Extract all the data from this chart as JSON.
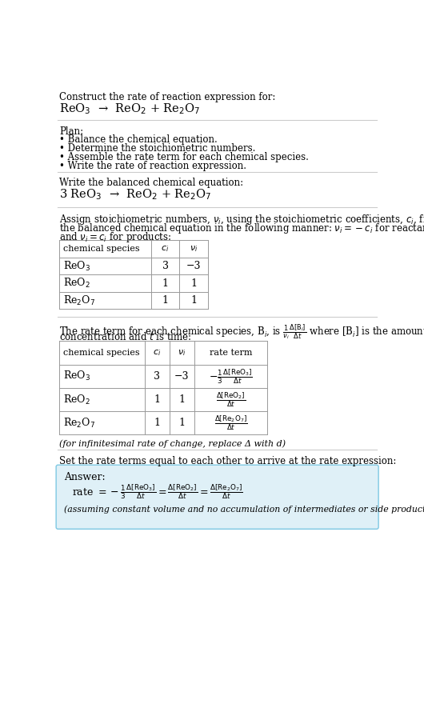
{
  "bg_color": "#ffffff",
  "text_color": "#000000",
  "font_family": "DejaVu Serif",
  "title_line1": "Construct the rate of reaction expression for:",
  "reaction_unbalanced": "ReO$_3$  →  ReO$_2$ + Re$_2$O$_7$",
  "plan_header": "Plan:",
  "plan_items": [
    "• Balance the chemical equation.",
    "• Determine the stoichiometric numbers.",
    "• Assemble the rate term for each chemical species.",
    "• Write the rate of reaction expression."
  ],
  "balanced_header": "Write the balanced chemical equation:",
  "balanced_eq": "3 ReO$_3$  →  ReO$_2$ + Re$_2$O$_7$",
  "stoich_text1": "Assign stoichiometric numbers, $\\nu_i$, using the stoichiometric coefficients, $c_i$, from",
  "stoich_text2": "the balanced chemical equation in the following manner: $\\nu_i = -c_i$ for reactants",
  "stoich_text3": "and $\\nu_i = c_i$ for products:",
  "table1_headers": [
    "chemical species",
    "$c_i$",
    "$\\nu_i$"
  ],
  "table1_rows": [
    [
      "ReO$_3$",
      "3",
      "−3"
    ],
    [
      "ReO$_2$",
      "1",
      "1"
    ],
    [
      "Re$_2$O$_7$",
      "1",
      "1"
    ]
  ],
  "rate_text1": "The rate term for each chemical species, B$_i$, is $\\frac{1}{\\nu_i}\\frac{\\Delta[\\mathrm{B}_i]}{\\Delta t}$ where [B$_i$] is the amount",
  "rate_text2": "concentration and $t$ is time:",
  "table2_headers": [
    "chemical species",
    "$c_i$",
    "$\\nu_i$",
    "rate term"
  ],
  "table2_rows": [
    [
      "ReO$_3$",
      "3",
      "−3",
      "$-\\frac{1}{3}\\frac{\\Delta[\\mathrm{ReO_3}]}{\\Delta t}$"
    ],
    [
      "ReO$_2$",
      "1",
      "1",
      "$\\frac{\\Delta[\\mathrm{ReO_2}]}{\\Delta t}$"
    ],
    [
      "Re$_2$O$_7$",
      "1",
      "1",
      "$\\frac{\\Delta[\\mathrm{Re_2O_7}]}{\\Delta t}$"
    ]
  ],
  "infinitesimal_note": "(for infinitesimal rate of change, replace Δ with d)",
  "set_rate_header": "Set the rate terms equal to each other to arrive at the rate expression:",
  "answer_label": "Answer:",
  "answer_eq": "rate $= -\\frac{1}{3}\\frac{\\Delta[\\mathrm{ReO_3}]}{\\Delta t} = \\frac{\\Delta[\\mathrm{ReO_2}]}{\\Delta t} = \\frac{\\Delta[\\mathrm{Re_2O_7}]}{\\Delta t}$",
  "answer_note": "(assuming constant volume and no accumulation of intermediates or side products)",
  "answer_box_color": "#dff0f7",
  "answer_box_border": "#7ec8e3",
  "hline_color": "#cccccc",
  "table_line_color": "#999999"
}
